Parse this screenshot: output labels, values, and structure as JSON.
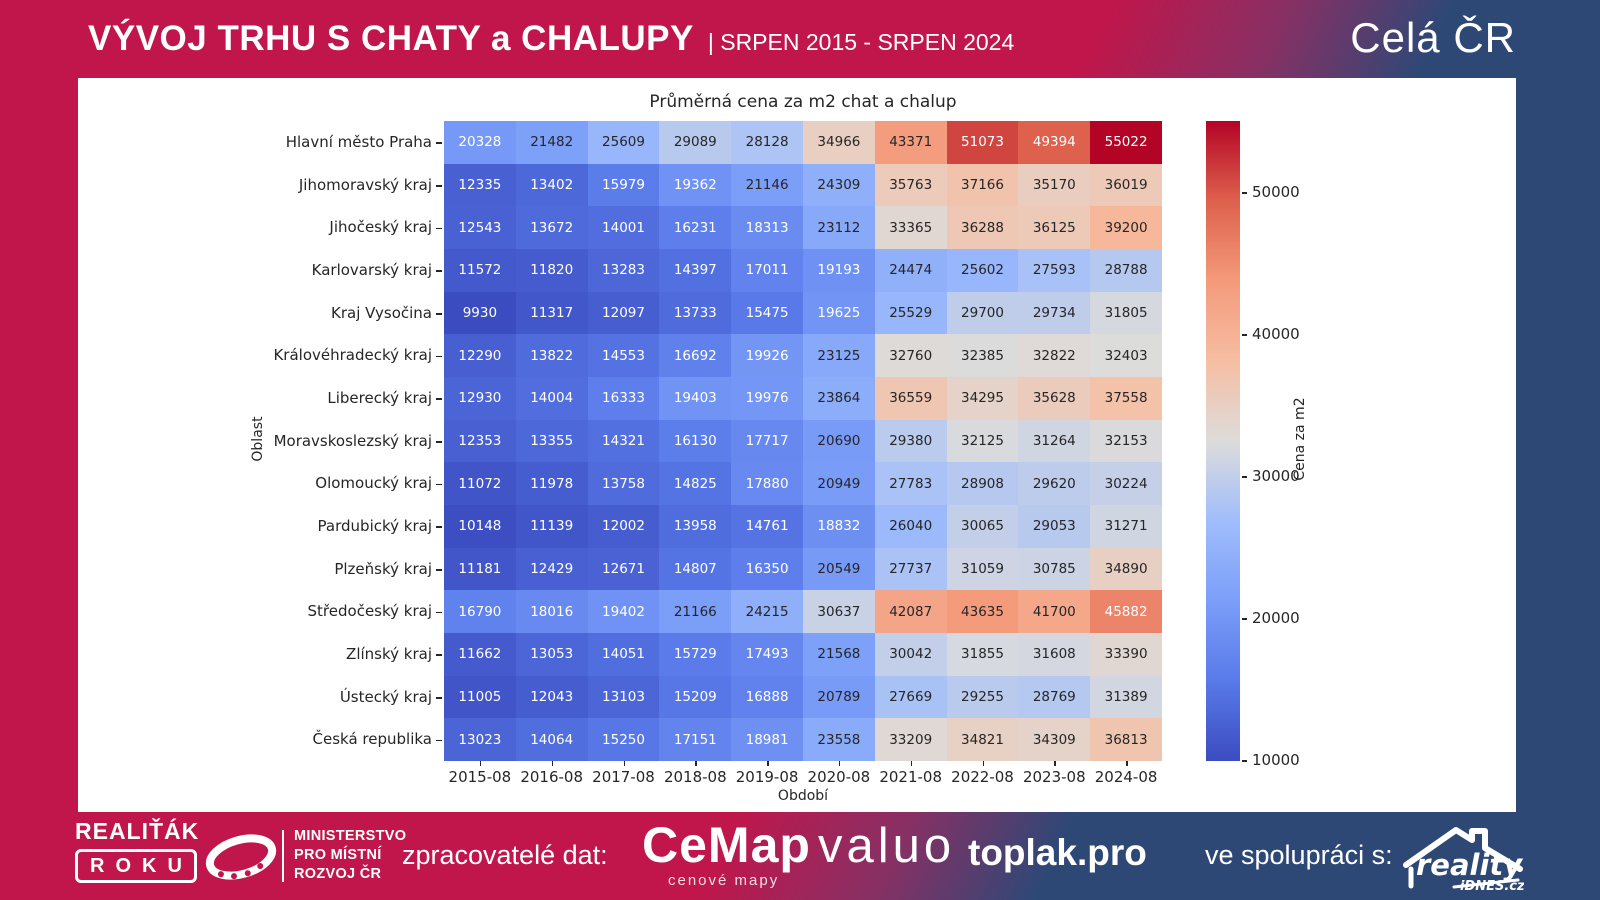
{
  "header": {
    "title": "VÝVOJ TRHU S CHATY a CHALUPY",
    "subtitle": "| SRPEN 2015 - SRPEN 2024",
    "region": "Celá ČR"
  },
  "chart_data": {
    "type": "heatmap",
    "title": "Průměrná cena za m2 chat a chalup",
    "xlabel": "Období",
    "ylabel": "Oblast",
    "colorbar_label": "Cena za m2",
    "colormap": "coolwarm",
    "vmin": 9930,
    "vmax": 55022,
    "colorbar_ticks": [
      10000,
      20000,
      30000,
      40000,
      50000
    ],
    "columns": [
      "2015-08",
      "2016-08",
      "2017-08",
      "2018-08",
      "2019-08",
      "2020-08",
      "2021-08",
      "2022-08",
      "2023-08",
      "2024-08"
    ],
    "rows": [
      {
        "label": "Hlavní město Praha",
        "values": [
          20328,
          21482,
          25609,
          29089,
          28128,
          34966,
          43371,
          51073,
          49394,
          55022
        ]
      },
      {
        "label": "Jihomoravský kraj",
        "values": [
          12335,
          13402,
          15979,
          19362,
          21146,
          24309,
          35763,
          37166,
          35170,
          36019
        ]
      },
      {
        "label": "Jihočeský kraj",
        "values": [
          12543,
          13672,
          14001,
          16231,
          18313,
          23112,
          33365,
          36288,
          36125,
          39200
        ]
      },
      {
        "label": "Karlovarský kraj",
        "values": [
          11572,
          11820,
          13283,
          14397,
          17011,
          19193,
          24474,
          25602,
          27593,
          28788
        ]
      },
      {
        "label": "Kraj Vysočina",
        "values": [
          9930,
          11317,
          12097,
          13733,
          15475,
          19625,
          25529,
          29700,
          29734,
          31805
        ]
      },
      {
        "label": "Královéhradecký kraj",
        "values": [
          12290,
          13822,
          14553,
          16692,
          19926,
          23125,
          32760,
          32385,
          32822,
          32403
        ]
      },
      {
        "label": "Liberecký kraj",
        "values": [
          12930,
          14004,
          16333,
          19403,
          19976,
          23864,
          36559,
          34295,
          35628,
          37558
        ]
      },
      {
        "label": "Moravskoslezský kraj",
        "values": [
          12353,
          13355,
          14321,
          16130,
          17717,
          20690,
          29380,
          32125,
          31264,
          32153
        ]
      },
      {
        "label": "Olomoucký kraj",
        "values": [
          11072,
          11978,
          13758,
          14825,
          17880,
          20949,
          27783,
          28908,
          29620,
          30224
        ]
      },
      {
        "label": "Pardubický kraj",
        "values": [
          10148,
          11139,
          12002,
          13958,
          14761,
          18832,
          26040,
          30065,
          29053,
          31271
        ]
      },
      {
        "label": "Plzeňský kraj",
        "values": [
          11181,
          12429,
          12671,
          14807,
          16350,
          20549,
          27737,
          31059,
          30785,
          34890
        ]
      },
      {
        "label": "Středočeský kraj",
        "values": [
          16790,
          18016,
          19402,
          21166,
          24215,
          30637,
          42087,
          43635,
          41700,
          45882
        ]
      },
      {
        "label": "Zlínský kraj",
        "values": [
          11662,
          13053,
          14051,
          15729,
          17493,
          21568,
          30042,
          31855,
          31608,
          33390
        ]
      },
      {
        "label": "Ústecký kraj",
        "values": [
          11005,
          12043,
          13103,
          15209,
          16888,
          20789,
          27669,
          29255,
          28769,
          31389
        ]
      },
      {
        "label": "Česká republika",
        "values": [
          13023,
          14064,
          15250,
          17151,
          18981,
          23558,
          33209,
          34821,
          34309,
          36813
        ]
      }
    ]
  },
  "footer": {
    "award_line1": "REALIŤÁK",
    "award_line2": "ROKU",
    "ministry": [
      "MINISTERSTVO",
      "PRO MÍSTNÍ",
      "ROZVOJ ČR"
    ],
    "processors_label": "zpracovatelé dat:",
    "cemap": "CeMap",
    "cemap_sub": "cenové mapy",
    "valuo": "valuo",
    "toplak": "toplak.pro",
    "cooperation_label": "ve spolupráci s:",
    "reality": "reality",
    "idnes": "iDNES.cz"
  },
  "colors": {
    "crimson": "#C1164B",
    "dark_blue": "#2E4876"
  }
}
